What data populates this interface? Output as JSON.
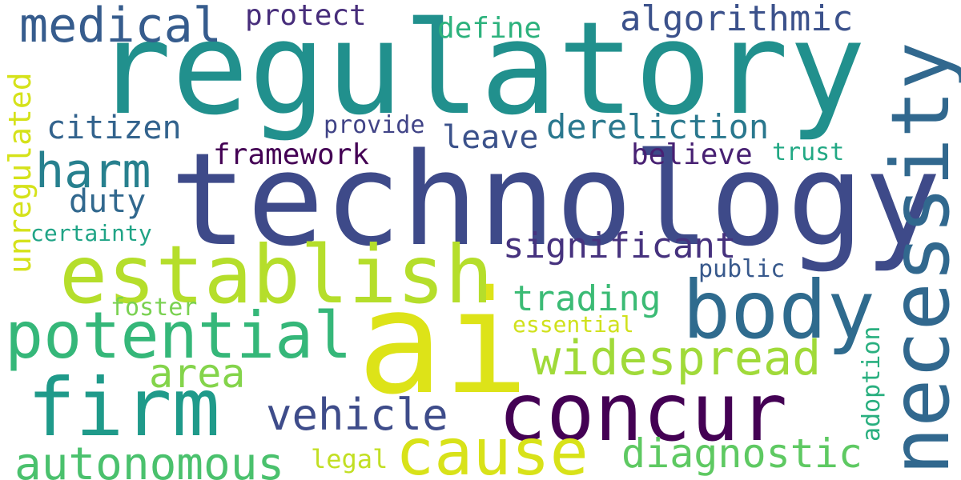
{
  "words": [
    {
      "key": "regulatory",
      "text": "regulatory",
      "color": "#21908d"
    },
    {
      "key": "technology",
      "text": "technology",
      "color": "#3e4a89"
    },
    {
      "key": "ai",
      "text": "ai",
      "color": "#dde318"
    },
    {
      "key": "necessity",
      "text": "necessity",
      "color": "#31688e"
    },
    {
      "key": "establish",
      "text": "establish",
      "color": "#b5de2b"
    },
    {
      "key": "concur",
      "text": "concur",
      "color": "#440154"
    },
    {
      "key": "body",
      "text": "body",
      "color": "#2f6b8e"
    },
    {
      "key": "firm",
      "text": "firm",
      "color": "#1f9a8a"
    },
    {
      "key": "potential",
      "text": "potential",
      "color": "#35b779"
    },
    {
      "key": "cause",
      "text": "cause",
      "color": "#d8e219"
    },
    {
      "key": "widespread",
      "text": "widespread",
      "color": "#a0da39"
    },
    {
      "key": "autonomous",
      "text": "autonomous",
      "color": "#4ac16d"
    },
    {
      "key": "medical",
      "text": "medical",
      "color": "#365c8d"
    },
    {
      "key": "harm",
      "text": "harm",
      "color": "#27808e"
    },
    {
      "key": "area",
      "text": "area",
      "color": "#84d44b"
    },
    {
      "key": "vehicle",
      "text": "vehicle",
      "color": "#3e4c8a"
    },
    {
      "key": "diagnostic",
      "text": "diagnostic",
      "color": "#5ec962"
    },
    {
      "key": "algorithmic",
      "text": "algorithmic",
      "color": "#3b518b"
    },
    {
      "key": "dereliction",
      "text": "dereliction",
      "color": "#2a788e"
    },
    {
      "key": "significant",
      "text": "significant",
      "color": "#46327e"
    },
    {
      "key": "trading",
      "text": "trading",
      "color": "#3bbb75"
    },
    {
      "key": "citizen",
      "text": "citizen",
      "color": "#33638d"
    },
    {
      "key": "protect",
      "text": "protect",
      "color": "#472d7b"
    },
    {
      "key": "define",
      "text": "define",
      "color": "#2db27d"
    },
    {
      "key": "leave",
      "text": "leave",
      "color": "#3b528b"
    },
    {
      "key": "believe",
      "text": "believe",
      "color": "#482173"
    },
    {
      "key": "framework",
      "text": "framework",
      "color": "#440154"
    },
    {
      "key": "duty",
      "text": "duty",
      "color": "#31688e"
    },
    {
      "key": "provide",
      "text": "provide",
      "color": "#414487"
    },
    {
      "key": "trust",
      "text": "trust",
      "color": "#22a884"
    },
    {
      "key": "public",
      "text": "public",
      "color": "#38598c"
    },
    {
      "key": "certainty",
      "text": "certainty",
      "color": "#20a486"
    },
    {
      "key": "foster",
      "text": "foster",
      "color": "#7ad151"
    },
    {
      "key": "essential",
      "text": "essential",
      "color": "#d0e11c"
    },
    {
      "key": "legal",
      "text": "legal",
      "color": "#c2df23"
    },
    {
      "key": "unregulated",
      "text": "unregulated",
      "color": "#d5e21a"
    },
    {
      "key": "adoption",
      "text": "adoption",
      "color": "#29af7f"
    }
  ]
}
